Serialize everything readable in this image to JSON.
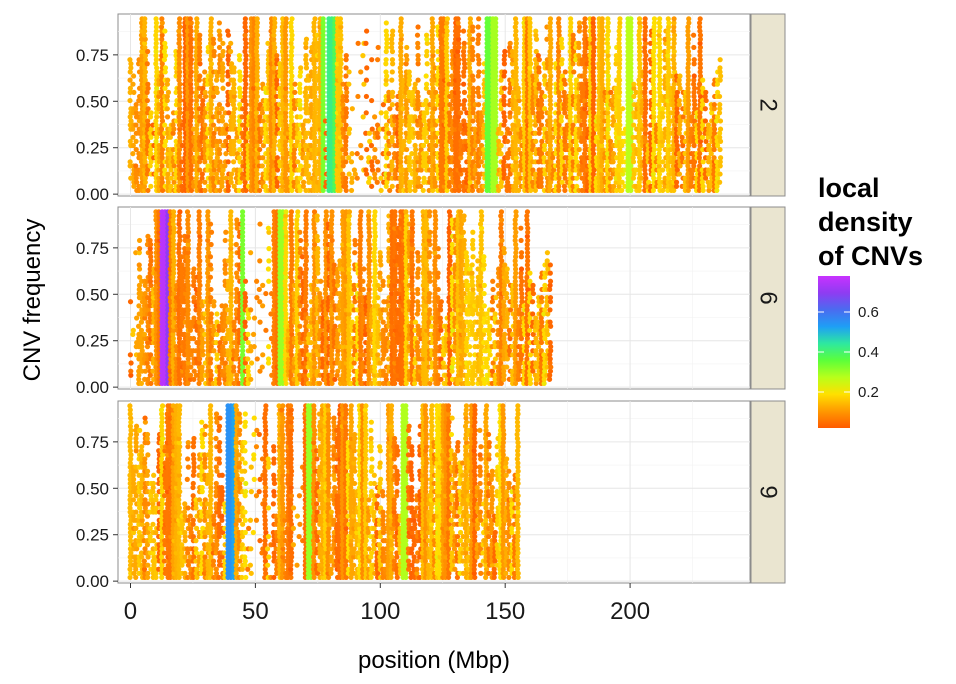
{
  "chart_data": {
    "type": "scatter",
    "title": "",
    "xlabel": "position (Mbp)",
    "ylabel": "CNV frequency",
    "x_ticks": [
      "0",
      "50",
      "100",
      "150",
      "200"
    ],
    "y_ticks": [
      "0.00",
      "0.25",
      "0.50",
      "0.75"
    ],
    "xlim": [
      -5,
      248
    ],
    "ylim": [
      -0.01,
      0.97
    ],
    "grid": true,
    "legend_position": "right",
    "color_scale": {
      "title": [
        "local",
        "density",
        "of CNVs"
      ],
      "ticks": [
        "0.2",
        "0.4",
        "0.6"
      ],
      "tick_values": [
        0.2,
        0.4,
        0.6
      ],
      "range": [
        0.02,
        0.78
      ],
      "colors": [
        "#ff5a00",
        "#ff9900",
        "#ffe000",
        "#b8ff1a",
        "#5cff3a",
        "#2ee8a0",
        "#1e9ff5",
        "#4a6cf0",
        "#8e3cf2",
        "#c832ff"
      ]
    },
    "panels": [
      {
        "strip": "2",
        "xmax": 236,
        "features": [
          {
            "x": 77,
            "density": 0.33
          },
          {
            "x": 80,
            "density": 0.42
          },
          {
            "x": 81,
            "density": 0.38
          },
          {
            "x": 143,
            "density": 0.35
          },
          {
            "x": 146,
            "density": 0.29
          },
          {
            "x": 200,
            "density": 0.27
          }
        ],
        "sparse_regions": [
          [
            87,
            102
          ]
        ]
      },
      {
        "strip": "6",
        "xmax": 168,
        "features": [
          {
            "x": 13,
            "density": 0.76
          },
          {
            "x": 14,
            "density": 0.7
          },
          {
            "x": 15,
            "density": 0.65
          },
          {
            "x": 45,
            "density": 0.33
          },
          {
            "x": 60,
            "density": 0.3
          }
        ],
        "sparse_regions": [
          [
            0,
            3
          ],
          [
            48,
            57
          ]
        ]
      },
      {
        "strip": "9",
        "xmax": 155,
        "features": [
          {
            "x": 40,
            "density": 0.55
          },
          {
            "x": 41,
            "density": 0.52
          },
          {
            "x": 72,
            "density": 0.3
          },
          {
            "x": 110,
            "density": 0.28
          }
        ],
        "sparse_regions": [
          [
            47,
            57
          ],
          [
            62,
            70
          ]
        ]
      }
    ]
  }
}
